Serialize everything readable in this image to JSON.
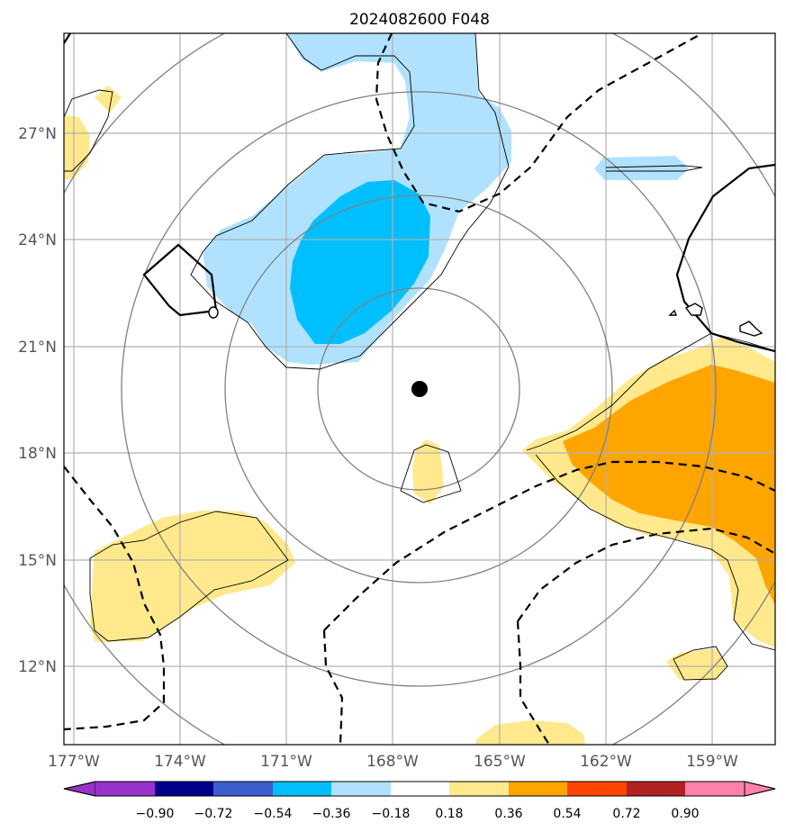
{
  "title": "2024082600 F048",
  "map": {
    "lon_ticks": [
      {
        "value": -177,
        "label": "177°W"
      },
      {
        "value": -174,
        "label": "174°W"
      },
      {
        "value": -171,
        "label": "171°W"
      },
      {
        "value": -168,
        "label": "168°W"
      },
      {
        "value": -165,
        "label": "165°W"
      },
      {
        "value": -162,
        "label": "162°W"
      },
      {
        "value": -159,
        "label": "159°W"
      }
    ],
    "lat_ticks": [
      {
        "value": 27,
        "label": "27°N"
      },
      {
        "value": 24,
        "label": "24°N"
      },
      {
        "value": 21,
        "label": "21°N"
      },
      {
        "value": 18,
        "label": "18°N"
      },
      {
        "value": 15,
        "label": "15°N"
      },
      {
        "value": 12,
        "label": "12°N"
      }
    ],
    "lon_range": [
      -177.3,
      -157.3
    ],
    "lat_range": [
      9.8,
      29.6
    ],
    "storm_center": {
      "lon": -167.3,
      "lat": 19.8
    },
    "range_rings": "concentric circles around storm center",
    "grid": true
  },
  "colorbar": {
    "levels": [
      "−0.90",
      "−0.72",
      "−0.54",
      "−0.36",
      "−0.18",
      "0.18",
      "0.36",
      "0.54",
      "0.72",
      "0.90"
    ],
    "colors": [
      "#9932cc",
      "#00008b",
      "#3a5fcd",
      "#00bfff",
      "#b0e2ff",
      "#ffffff",
      "#ffe98c",
      "#ffa500",
      "#ff4500",
      "#b22222",
      "#ff82ab"
    ],
    "extend": "both"
  }
}
